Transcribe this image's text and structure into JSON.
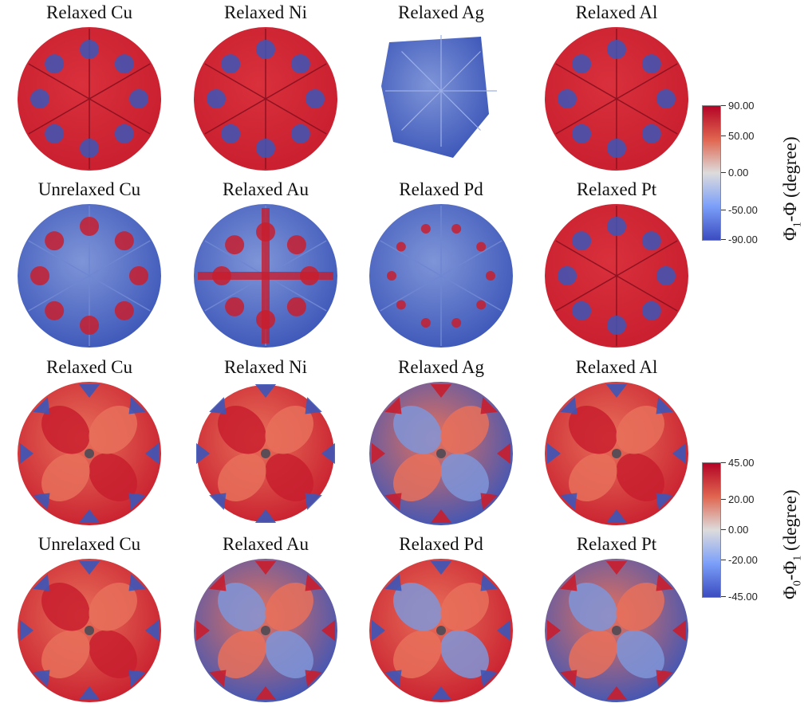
{
  "panels": [
    {
      "title": "Relaxed Cu",
      "colorbar": "top",
      "style": "red-cube"
    },
    {
      "title": "Relaxed Ni",
      "colorbar": "top",
      "style": "red-star"
    },
    {
      "title": "Relaxed Ag",
      "colorbar": "top",
      "style": "blue-hex"
    },
    {
      "title": "Relaxed Al",
      "colorbar": "top",
      "style": "red-mixed"
    },
    {
      "title": "Unrelaxed Cu",
      "colorbar": "top",
      "style": "blue-cube"
    },
    {
      "title": "Relaxed Au",
      "colorbar": "top",
      "style": "blue-net"
    },
    {
      "title": "Relaxed Pd",
      "colorbar": "top",
      "style": "blue-dots"
    },
    {
      "title": "Relaxed Pt",
      "colorbar": "top",
      "style": "red-mixed"
    },
    {
      "title": "Relaxed Cu",
      "colorbar": "bottom",
      "style": "petal-red"
    },
    {
      "title": "Relaxed Ni",
      "colorbar": "bottom",
      "style": "petal-jagged"
    },
    {
      "title": "Relaxed Ag",
      "colorbar": "bottom",
      "style": "petal-blue"
    },
    {
      "title": "Relaxed Al",
      "colorbar": "bottom",
      "style": "petal-red-dark"
    },
    {
      "title": "Unrelaxed Cu",
      "colorbar": "bottom",
      "style": "petal-mixed"
    },
    {
      "title": "Relaxed Au",
      "colorbar": "bottom",
      "style": "petal-blue"
    },
    {
      "title": "Relaxed Pd",
      "colorbar": "bottom",
      "style": "petal-blue-red"
    },
    {
      "title": "Relaxed Pt",
      "colorbar": "bottom",
      "style": "petal-blue"
    }
  ],
  "colorbars": {
    "top": {
      "ticks": [
        "90.00",
        "50.00",
        "0.00",
        "-50.00",
        "-90.00"
      ],
      "label_main": "Φ",
      "label_sub": "1",
      "label_rest": "-Φ (degree)"
    },
    "bottom": {
      "ticks": [
        "45.00",
        "20.00",
        "0.00",
        "-20.00",
        "-45.00"
      ],
      "label_main": "Φ",
      "label_sub": "0",
      "label_mid": "-Φ",
      "label_sub2": "1",
      "label_rest": " (degree)"
    }
  },
  "colors": {
    "red": "#c81e2e",
    "red_light": "#e8705a",
    "blue": "#3c56b8",
    "blue_light": "#7f95d8",
    "white": "#dedde4"
  }
}
